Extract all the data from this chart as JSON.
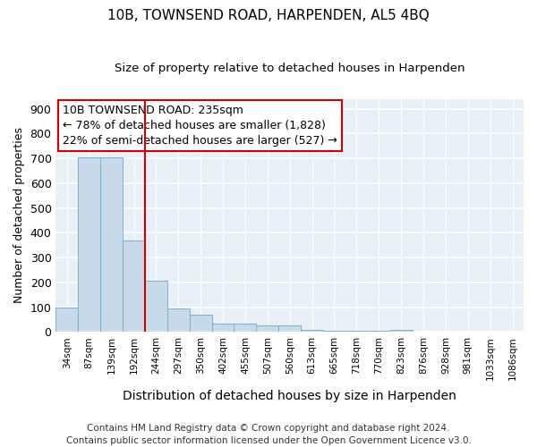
{
  "title": "10B, TOWNSEND ROAD, HARPENDEN, AL5 4BQ",
  "subtitle": "Size of property relative to detached houses in Harpenden",
  "xlabel": "Distribution of detached houses by size in Harpenden",
  "ylabel": "Number of detached properties",
  "categories": [
    "34sqm",
    "87sqm",
    "139sqm",
    "192sqm",
    "244sqm",
    "297sqm",
    "350sqm",
    "402sqm",
    "455sqm",
    "507sqm",
    "560sqm",
    "613sqm",
    "665sqm",
    "718sqm",
    "770sqm",
    "823sqm",
    "876sqm",
    "928sqm",
    "981sqm",
    "1033sqm",
    "1086sqm"
  ],
  "values": [
    100,
    705,
    705,
    370,
    207,
    95,
    70,
    35,
    35,
    25,
    25,
    10,
    5,
    5,
    5,
    10,
    2,
    2,
    1,
    1,
    1
  ],
  "bar_color": "#c8daea",
  "bar_edge_color": "#7fb0d0",
  "property_line_x": 3.5,
  "property_line_color": "#cc0000",
  "annotation_text": "10B TOWNSEND ROAD: 235sqm\n← 78% of detached houses are smaller (1,828)\n22% of semi-detached houses are larger (527) →",
  "annotation_box_color": "#cc0000",
  "ylim": [
    0,
    940
  ],
  "yticks": [
    0,
    100,
    200,
    300,
    400,
    500,
    600,
    700,
    800,
    900
  ],
  "background_color": "#e8eff6",
  "footer_text": "Contains HM Land Registry data © Crown copyright and database right 2024.\nContains public sector information licensed under the Open Government Licence v3.0.",
  "title_fontsize": 11,
  "subtitle_fontsize": 9.5,
  "annotation_fontsize": 9,
  "footer_fontsize": 7.5,
  "xlabel_fontsize": 10,
  "ylabel_fontsize": 9
}
